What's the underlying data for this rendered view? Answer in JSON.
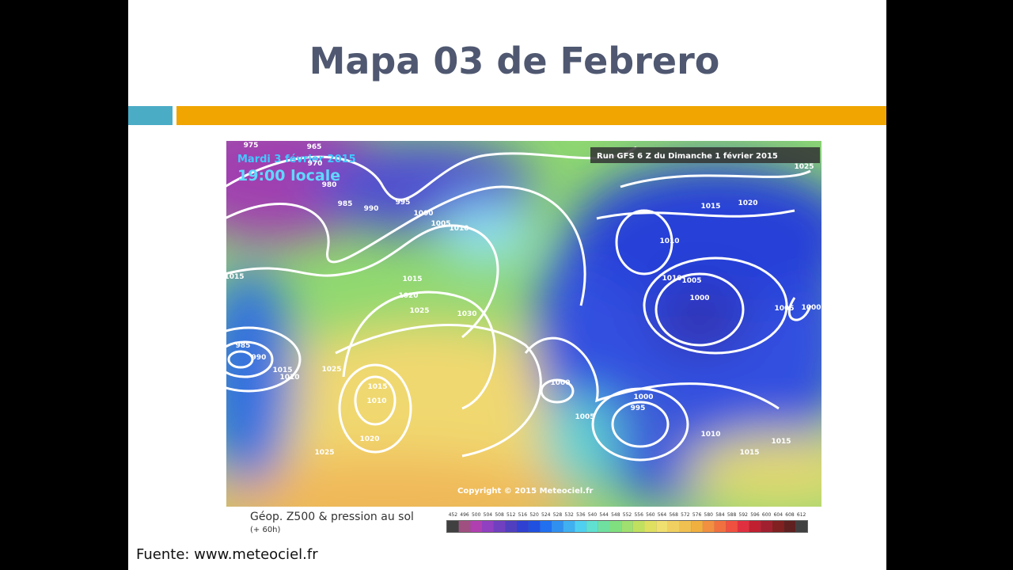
{
  "slide": {
    "title": "Mapa 03 de Febrero",
    "source": "Fuente: www.meteociel.fr"
  },
  "map": {
    "date": "Mardi 3 février 2015",
    "time": "19:00 locale",
    "run": "Run GFS 6 Z du Dimanche 1 février 2015",
    "copyright": "Copyright © 2015 Meteociel.fr",
    "caption": "Géop. Z500 & pression au sol",
    "lead": "(+ 60h)",
    "isobar_labels": [
      "975",
      "965",
      "970",
      "980",
      "985",
      "990",
      "995",
      "1000",
      "1005",
      "1010",
      "1015",
      "1020",
      "1025",
      "1030",
      "1015",
      "985",
      "990",
      "1015",
      "1010",
      "1025",
      "1015",
      "1010",
      "1020",
      "1025",
      "1015",
      "1020",
      "1025",
      "1010",
      "1010",
      "1005",
      "1000",
      "1005",
      "1000",
      "1000",
      "1005",
      "1000",
      "995",
      "1010",
      "1015",
      "1015"
    ],
    "scale_labels": [
      "452",
      "496",
      "500",
      "504",
      "508",
      "512",
      "516",
      "520",
      "524",
      "528",
      "532",
      "536",
      "540",
      "544",
      "548",
      "552",
      "556",
      "560",
      "564",
      "568",
      "572",
      "576",
      "580",
      "584",
      "588",
      "592",
      "596",
      "600",
      "604",
      "608",
      "612"
    ]
  }
}
